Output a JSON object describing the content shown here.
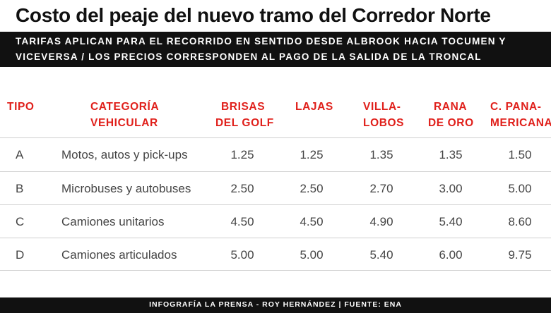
{
  "title": "Costo del peaje del nuevo tramo del Corredor Norte",
  "subtitle": {
    "line1": "TARIFAS APLICAN PARA EL RECORRIDO EN SENTIDO DESDE ALBROOK HACIA TOCUMEN Y",
    "line2": "VICEVERSA / LOS PRECIOS CORRESPONDEN AL PAGO DE LA SALIDA DE LA TRONCAL"
  },
  "colors": {
    "header_red": "#e0201b",
    "band": "#111111"
  },
  "headers": {
    "tipo": [
      "TIPO"
    ],
    "categoria": [
      "CATEGORÍA",
      "VEHICULAR"
    ],
    "brisas": [
      "BRISAS",
      "DEL GOLF"
    ],
    "lajas": [
      "LAJAS"
    ],
    "villalobos": [
      "VILLA-",
      "LOBOS"
    ],
    "rana": [
      "RANA",
      "DE ORO"
    ],
    "panamericana": [
      "C. PANA-",
      "MERICANA"
    ]
  },
  "rows": [
    {
      "tipo": "A",
      "categoria": "Motos, autos y pick-ups",
      "brisas": "1.25",
      "lajas": "1.25",
      "villalobos": "1.35",
      "rana": "1.35",
      "panamericana": "1.50"
    },
    {
      "tipo": "B",
      "categoria": "Microbuses y autobuses",
      "brisas": "2.50",
      "lajas": "2.50",
      "villalobos": "2.70",
      "rana": "3.00",
      "panamericana": "5.00"
    },
    {
      "tipo": "C",
      "categoria": "Camiones unitarios",
      "brisas": "4.50",
      "lajas": "4.50",
      "villalobos": "4.90",
      "rana": "5.40",
      "panamericana": "8.60"
    },
    {
      "tipo": "D",
      "categoria": "Camiones articulados",
      "brisas": "5.00",
      "lajas": "5.00",
      "villalobos": "5.40",
      "rana": "6.00",
      "panamericana": "9.75"
    }
  ],
  "footer": "INFOGRAFÍA LA PRENSA - ROY HERNÁNDEZ | FUENTE: ENA"
}
